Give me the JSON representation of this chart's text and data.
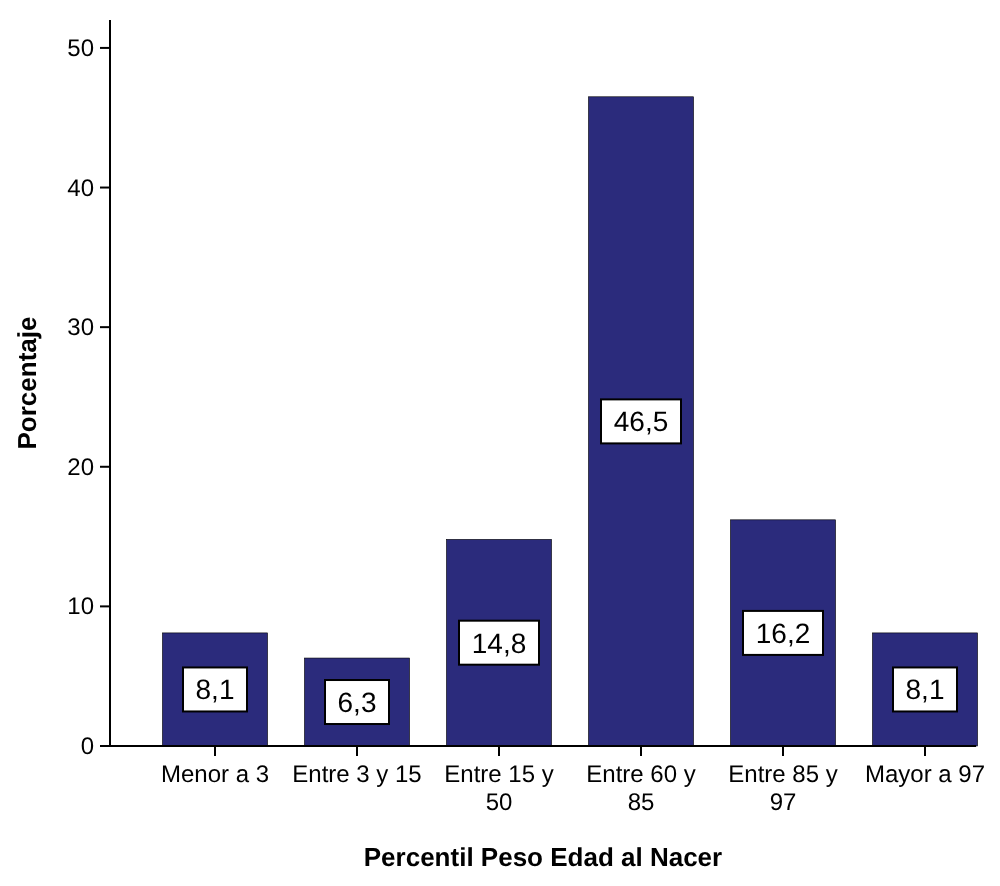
{
  "chart_data": {
    "type": "bar",
    "xlabel": "Percentil Peso Edad al Nacer",
    "ylabel": "Porcentaje",
    "categories": [
      "Menor a 3",
      "Entre 3 y 15",
      "Entre 15 y 50",
      "Entre 60 y 85",
      "Entre 85 y 97",
      "Mayor a 97"
    ],
    "values": [
      8.1,
      6.3,
      14.8,
      46.5,
      16.2,
      8.1
    ],
    "value_labels": [
      "8,1",
      "6,3",
      "14,8",
      "46,5",
      "16,2",
      "8,1"
    ],
    "color": "#2b2b7c",
    "ylim": [
      0,
      52
    ],
    "yticks": [
      0,
      10,
      20,
      30,
      40,
      50
    ],
    "grid": false
  }
}
